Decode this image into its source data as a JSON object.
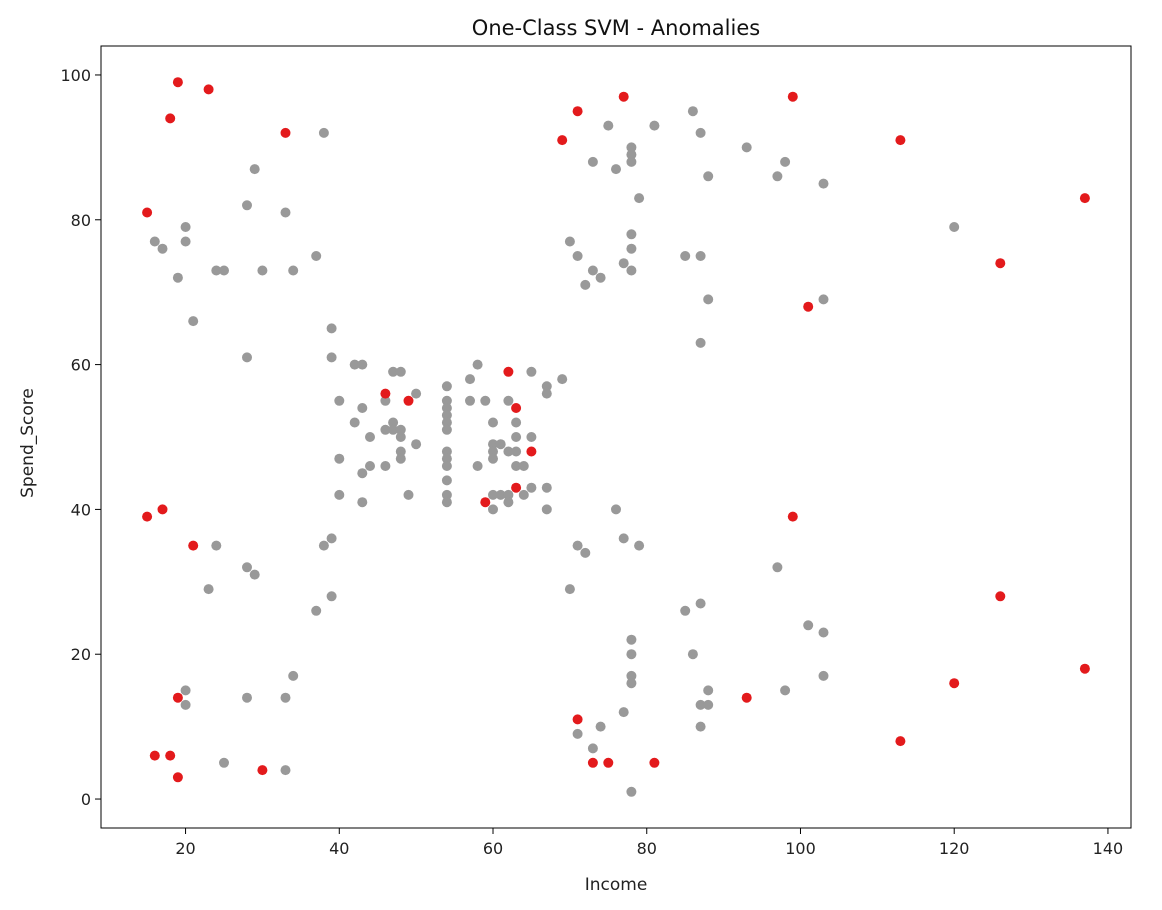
{
  "chart_data": {
    "type": "scatter",
    "title": "One-Class SVM - Anomalies",
    "xlabel": "Income",
    "ylabel": "Spend_Score",
    "xlim": [
      9,
      143
    ],
    "ylim": [
      -4,
      104
    ],
    "xticks": [
      20,
      40,
      60,
      80,
      100,
      120,
      140
    ],
    "yticks": [
      0,
      20,
      40,
      60,
      80,
      100
    ],
    "grid": false,
    "colors": {
      "normal": "#999999",
      "anomaly": "#e31a1c"
    },
    "series": [
      {
        "role": "normal",
        "points": [
          [
            16,
            77
          ],
          [
            17,
            76
          ],
          [
            19,
            72
          ],
          [
            20,
            79
          ],
          [
            20,
            77
          ],
          [
            21,
            66
          ],
          [
            24,
            73
          ],
          [
            25,
            73
          ],
          [
            28,
            82
          ],
          [
            29,
            87
          ],
          [
            28,
            61
          ],
          [
            30,
            73
          ],
          [
            33,
            81
          ],
          [
            34,
            73
          ],
          [
            37,
            75
          ],
          [
            38,
            92
          ],
          [
            20,
            15
          ],
          [
            20,
            13
          ],
          [
            23,
            29
          ],
          [
            24,
            35
          ],
          [
            25,
            5
          ],
          [
            28,
            32
          ],
          [
            29,
            31
          ],
          [
            28,
            14
          ],
          [
            33,
            14
          ],
          [
            34,
            17
          ],
          [
            33,
            4
          ],
          [
            37,
            26
          ],
          [
            38,
            35
          ],
          [
            39,
            36
          ],
          [
            39,
            28
          ],
          [
            39,
            65
          ],
          [
            39,
            61
          ],
          [
            40,
            55
          ],
          [
            40,
            47
          ],
          [
            40,
            42
          ],
          [
            42,
            60
          ],
          [
            42,
            52
          ],
          [
            43,
            60
          ],
          [
            43,
            54
          ],
          [
            43,
            45
          ],
          [
            43,
            41
          ],
          [
            44,
            50
          ],
          [
            44,
            46
          ],
          [
            46,
            55
          ],
          [
            46,
            51
          ],
          [
            46,
            46
          ],
          [
            47,
            59
          ],
          [
            47,
            52
          ],
          [
            47,
            51
          ],
          [
            48,
            59
          ],
          [
            48,
            50
          ],
          [
            48,
            48
          ],
          [
            48,
            47
          ],
          [
            48,
            51
          ],
          [
            49,
            42
          ],
          [
            50,
            56
          ],
          [
            50,
            49
          ],
          [
            54,
            57
          ],
          [
            54,
            55
          ],
          [
            54,
            54
          ],
          [
            54,
            53
          ],
          [
            54,
            52
          ],
          [
            54,
            51
          ],
          [
            54,
            48
          ],
          [
            54,
            47
          ],
          [
            54,
            46
          ],
          [
            54,
            44
          ],
          [
            54,
            42
          ],
          [
            54,
            41
          ],
          [
            57,
            58
          ],
          [
            57,
            55
          ],
          [
            58,
            60
          ],
          [
            58,
            46
          ],
          [
            59,
            55
          ],
          [
            60,
            52
          ],
          [
            60,
            49
          ],
          [
            60,
            48
          ],
          [
            60,
            47
          ],
          [
            60,
            40
          ],
          [
            60,
            42
          ],
          [
            61,
            49
          ],
          [
            61,
            42
          ],
          [
            62,
            55
          ],
          [
            62,
            48
          ],
          [
            62,
            42
          ],
          [
            62,
            41
          ],
          [
            63,
            52
          ],
          [
            63,
            50
          ],
          [
            63,
            48
          ],
          [
            63,
            46
          ],
          [
            64,
            46
          ],
          [
            64,
            42
          ],
          [
            65,
            59
          ],
          [
            65,
            50
          ],
          [
            65,
            43
          ],
          [
            67,
            57
          ],
          [
            67,
            56
          ],
          [
            67,
            43
          ],
          [
            67,
            40
          ],
          [
            69,
            58
          ],
          [
            70,
            77
          ],
          [
            71,
            75
          ],
          [
            72,
            71
          ],
          [
            73,
            88
          ],
          [
            73,
            73
          ],
          [
            74,
            72
          ],
          [
            75,
            93
          ],
          [
            76,
            87
          ],
          [
            77,
            74
          ],
          [
            78,
            90
          ],
          [
            78,
            89
          ],
          [
            78,
            88
          ],
          [
            78,
            78
          ],
          [
            78,
            76
          ],
          [
            78,
            73
          ],
          [
            79,
            83
          ],
          [
            81,
            93
          ],
          [
            85,
            75
          ],
          [
            86,
            95
          ],
          [
            87,
            92
          ],
          [
            87,
            75
          ],
          [
            88,
            86
          ],
          [
            88,
            69
          ],
          [
            87,
            63
          ],
          [
            93,
            90
          ],
          [
            97,
            86
          ],
          [
            98,
            88
          ],
          [
            103,
            85
          ],
          [
            103,
            69
          ],
          [
            120,
            79
          ],
          [
            70,
            29
          ],
          [
            71,
            35
          ],
          [
            72,
            34
          ],
          [
            76,
            40
          ],
          [
            77,
            36
          ],
          [
            79,
            35
          ],
          [
            71,
            9
          ],
          [
            73,
            7
          ],
          [
            74,
            10
          ],
          [
            77,
            12
          ],
          [
            78,
            22
          ],
          [
            78,
            20
          ],
          [
            78,
            17
          ],
          [
            78,
            16
          ],
          [
            78,
            1
          ],
          [
            85,
            26
          ],
          [
            86,
            20
          ],
          [
            87,
            27
          ],
          [
            87,
            13
          ],
          [
            87,
            10
          ],
          [
            88,
            15
          ],
          [
            88,
            13
          ],
          [
            97,
            32
          ],
          [
            98,
            15
          ],
          [
            101,
            24
          ],
          [
            103,
            23
          ],
          [
            103,
            17
          ]
        ]
      },
      {
        "role": "anomaly",
        "points": [
          [
            15,
            81
          ],
          [
            18,
            94
          ],
          [
            19,
            99
          ],
          [
            23,
            98
          ],
          [
            33,
            92
          ],
          [
            15,
            39
          ],
          [
            17,
            40
          ],
          [
            21,
            35
          ],
          [
            19,
            14
          ],
          [
            16,
            6
          ],
          [
            18,
            6
          ],
          [
            19,
            3
          ],
          [
            30,
            4
          ],
          [
            46,
            56
          ],
          [
            49,
            55
          ],
          [
            59,
            41
          ],
          [
            62,
            59
          ],
          [
            63,
            54
          ],
          [
            63,
            43
          ],
          [
            65,
            48
          ],
          [
            69,
            91
          ],
          [
            71,
            95
          ],
          [
            77,
            97
          ],
          [
            99,
            97
          ],
          [
            113,
            91
          ],
          [
            137,
            83
          ],
          [
            126,
            74
          ],
          [
            101,
            68
          ],
          [
            99,
            39
          ],
          [
            126,
            28
          ],
          [
            137,
            18
          ],
          [
            120,
            16
          ],
          [
            113,
            8
          ],
          [
            93,
            14
          ],
          [
            71,
            11
          ],
          [
            73,
            5
          ],
          [
            75,
            5
          ],
          [
            81,
            5
          ]
        ]
      }
    ]
  }
}
